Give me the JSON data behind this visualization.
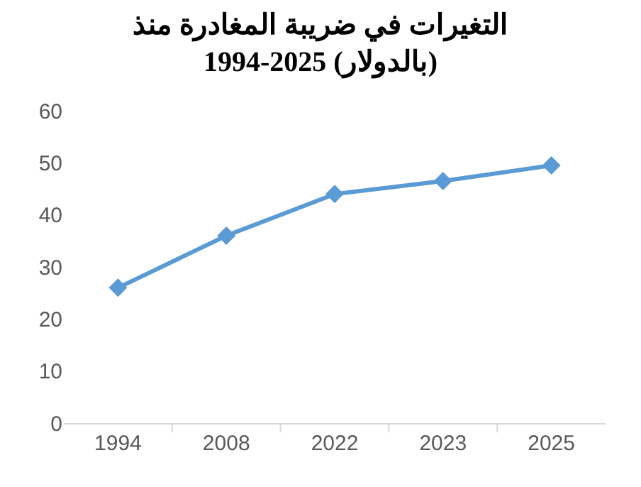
{
  "chart_data": {
    "type": "line",
    "title": "التغيرات في ضريبة المغادرة منذ\n1994-2025 (بالدولار)",
    "categories": [
      "1994",
      "2008",
      "2022",
      "2023",
      "2025"
    ],
    "series": [
      {
        "color": "#5b9bd5",
        "values": [
          26,
          36,
          44,
          46.5,
          49.5
        ]
      }
    ],
    "ylim": [
      0,
      60
    ],
    "yticks": [
      0,
      10,
      20,
      30,
      40,
      50,
      60
    ],
    "grid": false,
    "marker": "diamond",
    "line_style": "solid"
  }
}
